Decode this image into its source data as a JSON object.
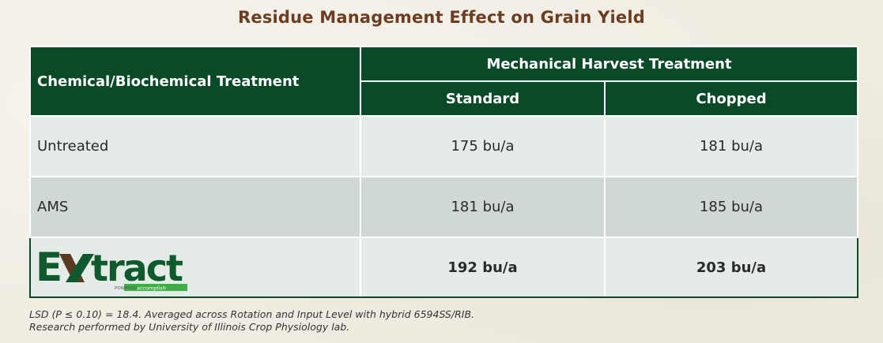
{
  "title": "Residue Management Effect on Grain Yield",
  "table": {
    "row_header": "Chemical/Biochemical Treatment",
    "group_header": "Mechanical Harvest Treatment",
    "columns": [
      "Standard",
      "Chopped"
    ],
    "rows": [
      {
        "label": "Untreated",
        "standard": "175 bu/a",
        "chopped": "181 bu/a"
      },
      {
        "label": "AMS",
        "standard": "181 bu/a",
        "chopped": "185 bu/a"
      },
      {
        "label": "Extract",
        "standard": "192 bu/a",
        "chopped": "203 bu/a",
        "logo_text": "EXtract",
        "logo_tagline": "POWERED by accomplish"
      }
    ]
  },
  "footnote": {
    "line1": "LSD (P ≤ 0.10) = 18.4. Averaged across Rotation and Input Level with hybrid 6594SS/RIB.",
    "line2": "Research performed by University of Illinois Crop Physiology lab."
  },
  "colors": {
    "header_green": "#0b4a28",
    "title_brown": "#6b3e24",
    "logo_green": "#0e5a2c",
    "logo_brown": "#5a3a20",
    "accent_green": "#3fae49"
  }
}
